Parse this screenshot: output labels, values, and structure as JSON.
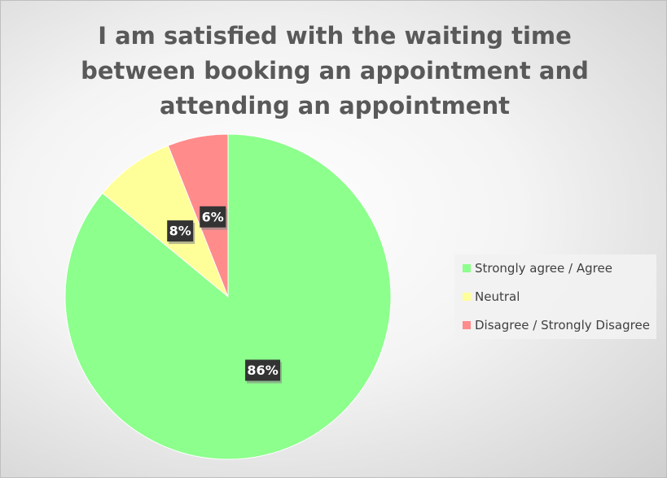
{
  "chart_data": {
    "type": "pie",
    "title": "I am satisfied with the waiting time between booking an appointment and attending an appointment",
    "categories": [
      "Strongly agree / Agree",
      "Neutral",
      "Disagree / Strongly Disagree"
    ],
    "values": [
      86,
      8,
      6
    ],
    "value_labels": [
      "86%",
      "8%",
      "6%"
    ],
    "colors": [
      "#8cff8c",
      "#ffff99",
      "#ff8b8b"
    ],
    "legend": "right"
  }
}
